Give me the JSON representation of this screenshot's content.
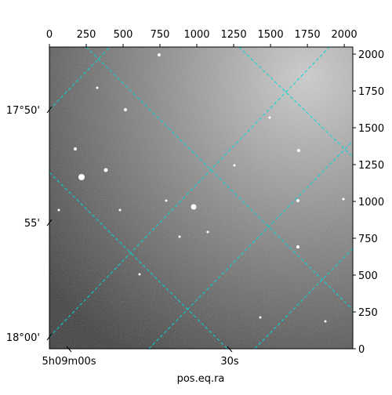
{
  "chart_data": {
    "type": "image",
    "xlabel": "pos.eq.ra",
    "xlim": [
      0,
      2058
    ],
    "ylim": [
      0,
      2048
    ],
    "xticks": [
      0,
      250,
      500,
      750,
      1000,
      1250,
      1500,
      1750,
      2000
    ],
    "yticks": [
      0,
      250,
      500,
      750,
      1000,
      1250,
      1500,
      1750,
      2000
    ],
    "left_ticks": [
      {
        "value": 1622,
        "label": "17°50'"
      },
      {
        "value": 856,
        "label": "55'"
      },
      {
        "value": 80,
        "label": "18°00'"
      }
    ],
    "bottom_ticks": [
      {
        "value": 133,
        "label": "5h09m00s"
      },
      {
        "value": 1223,
        "label": "30s"
      }
    ],
    "grid_color": "#00d8d8"
  }
}
